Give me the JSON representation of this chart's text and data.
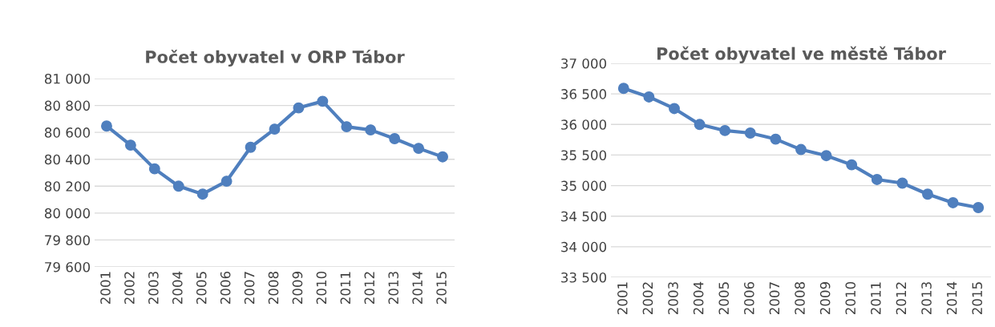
{
  "chart_data": [
    {
      "type": "line",
      "title": "Počet obyvatel v ORP Tábor",
      "categories": [
        "2001",
        "2002",
        "2003",
        "2004",
        "2005",
        "2006",
        "2007",
        "2008",
        "2009",
        "2010",
        "2011",
        "2012",
        "2013",
        "2014",
        "2015"
      ],
      "series": [
        {
          "color": "#4f7fbe",
          "values": [
            80647,
            80505,
            80329,
            80200,
            80141,
            80237,
            80489,
            80624,
            80782,
            80831,
            80642,
            80618,
            80553,
            80481,
            80418
          ]
        }
      ],
      "ylim": [
        79600,
        81000
      ],
      "yticks": [
        {
          "value": 79600,
          "label": "79 600"
        },
        {
          "value": 79800,
          "label": "79 800"
        },
        {
          "value": 80000,
          "label": "80 000"
        },
        {
          "value": 80200,
          "label": "80 200"
        },
        {
          "value": 80400,
          "label": "80 400"
        },
        {
          "value": 80600,
          "label": "80 600"
        },
        {
          "value": 80800,
          "label": "80 800"
        },
        {
          "value": 81000,
          "label": "81 000"
        }
      ],
      "grid": "y",
      "marker": "circle",
      "line_style": "solid"
    },
    {
      "type": "line",
      "title": "Počet obyvatel ve městě Tábor",
      "categories": [
        "2001",
        "2002",
        "2003",
        "2004",
        "2005",
        "2006",
        "2007",
        "2008",
        "2009",
        "2010",
        "2011",
        "2012",
        "2013",
        "2014",
        "2015"
      ],
      "series": [
        {
          "color": "#4f7fbe",
          "values": [
            36590,
            36450,
            36260,
            36000,
            35900,
            35860,
            35760,
            35590,
            35490,
            35340,
            35100,
            35040,
            34860,
            34720,
            34640
          ]
        }
      ],
      "ylim": [
        33500,
        37000
      ],
      "yticks": [
        {
          "value": 33500,
          "label": "33 500"
        },
        {
          "value": 34000,
          "label": "34 000"
        },
        {
          "value": 34500,
          "label": "34 500"
        },
        {
          "value": 35000,
          "label": "35 000"
        },
        {
          "value": 35500,
          "label": "35 500"
        },
        {
          "value": 36000,
          "label": "36 000"
        },
        {
          "value": 36500,
          "label": "36 500"
        },
        {
          "value": 37000,
          "label": "37 000"
        }
      ],
      "grid": "y",
      "marker": "circle",
      "line_style": "solid"
    }
  ]
}
